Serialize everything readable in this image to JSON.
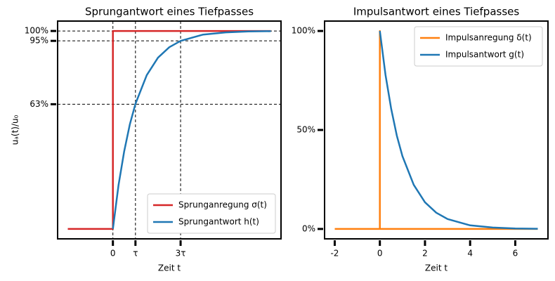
{
  "chart_data": [
    {
      "type": "line",
      "title": "Sprungantwort eines Tiefpasses",
      "xlabel": "Zeit t",
      "ylabel": "uₐ(t)/u₀",
      "xlim": [
        -2.45,
        7.45
      ],
      "ylim": [
        -5,
        105
      ],
      "xticks": [
        0,
        {
          "value": 1,
          "label": "τ"
        },
        {
          "value": 3,
          "label": "3τ"
        }
      ],
      "yticks": [
        {
          "value": 63,
          "label": "63%"
        },
        {
          "value": 95,
          "label": "95%"
        },
        {
          "value": 100,
          "label": "100%"
        }
      ],
      "grid": true,
      "legend": "lower right",
      "series": [
        {
          "name": "Sprunganregung σ(t)",
          "color": "#d62728",
          "x": [
            -2,
            0,
            0,
            7
          ],
          "values": [
            0,
            0,
            100,
            100
          ]
        },
        {
          "name": "Sprungantwort h(t)",
          "color": "#1f77b4",
          "x": [
            0,
            0.25,
            0.5,
            0.75,
            1,
            1.5,
            2,
            2.5,
            3,
            4,
            5,
            6,
            7
          ],
          "values": [
            0,
            22.1,
            39.3,
            52.8,
            63.2,
            77.7,
            86.5,
            91.8,
            95.0,
            98.2,
            99.3,
            99.8,
            99.9
          ]
        }
      ]
    },
    {
      "type": "line",
      "title": "Impulsantwort eines Tiefpasses",
      "xlabel": "Zeit t",
      "xlim": [
        -2.45,
        7.45
      ],
      "ylim": [
        -5,
        105
      ],
      "xticks": [
        -2,
        0,
        2,
        4,
        6
      ],
      "yticks": [
        {
          "value": 0,
          "label": "0%"
        },
        {
          "value": 50,
          "label": "50%"
        },
        {
          "value": 100,
          "label": "100%"
        }
      ],
      "grid": false,
      "legend": "upper right",
      "series": [
        {
          "name": "Impulsanregung δ(t)",
          "color": "#ff7f0e",
          "x": [
            -2,
            0,
            0,
            0,
            7
          ],
          "values": [
            0,
            0,
            100,
            0,
            0
          ]
        },
        {
          "name": "Impulsantwort g(t)",
          "color": "#1f77b4",
          "x": [
            0,
            0.25,
            0.5,
            0.75,
            1,
            1.5,
            2,
            2.5,
            3,
            4,
            5,
            6,
            7
          ],
          "values": [
            100,
            77.9,
            60.7,
            47.2,
            36.8,
            22.3,
            13.5,
            8.2,
            5.0,
            1.8,
            0.7,
            0.2,
            0.1
          ]
        }
      ]
    }
  ]
}
